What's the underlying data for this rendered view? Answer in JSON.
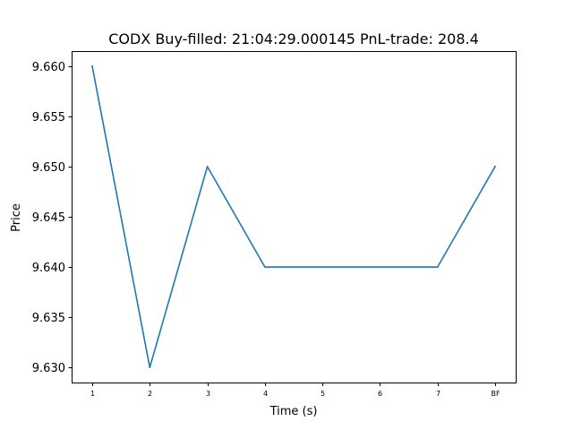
{
  "chart_data": {
    "type": "line",
    "title": "CODX  Buy-filled:  21:04:29.000145  PnL-trade:  208.4",
    "xlabel": "Time (s)",
    "ylabel": "Price",
    "categories": [
      "1",
      "2",
      "3",
      "4",
      "5",
      "6",
      "7",
      "BF"
    ],
    "series": [
      {
        "values": [
          9.66,
          9.63,
          9.65,
          9.64,
          9.64,
          9.64,
          9.64,
          9.65
        ],
        "color": "#1f77b4"
      }
    ],
    "ylim": [
      9.6285,
      9.6615
    ],
    "yticks": [
      "9.630",
      "9.635",
      "9.640",
      "9.645",
      "9.650",
      "9.655",
      "9.660"
    ],
    "ytick_values": [
      9.63,
      9.635,
      9.64,
      9.645,
      9.65,
      9.655,
      9.66
    ],
    "grid": false,
    "legend": "none"
  }
}
